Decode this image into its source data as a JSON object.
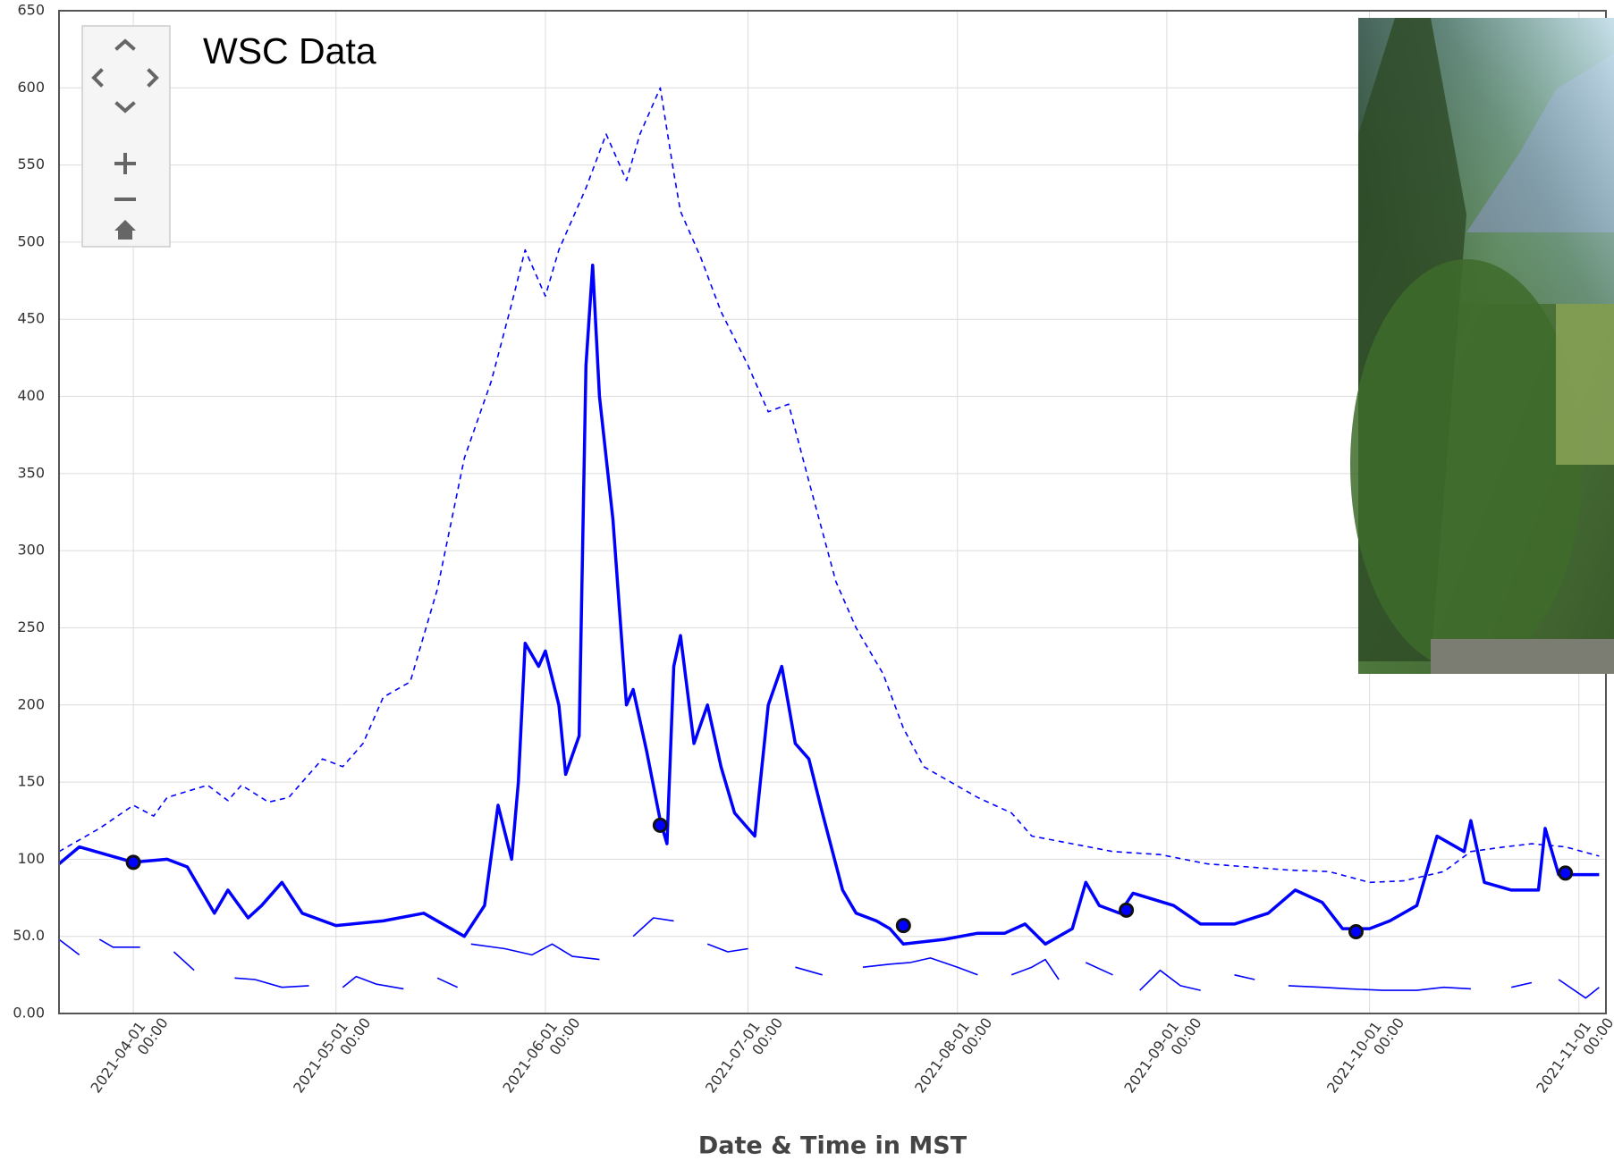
{
  "chart_data": {
    "type": "line",
    "annotation": "WSC Data",
    "x_label": "Date & Time in MST",
    "xlim": [
      "2021-03-21 00:00",
      "2021-11-05 00:00"
    ],
    "xticks": [
      "2021-04-01 00:00",
      "2021-05-01 00:00",
      "2021-06-01 00:00",
      "2021-07-01 00:00",
      "2021-08-01 00:00",
      "2021-09-01 00:00",
      "2021-10-01 00:00",
      "2021-11-01 00:00"
    ],
    "ylim": [
      0,
      650
    ],
    "yticks": [
      {
        "value": 0,
        "label": "0.00"
      },
      {
        "value": 50,
        "label": "50.0"
      },
      100,
      150,
      200,
      250,
      300,
      350,
      400,
      450,
      500,
      550,
      600,
      650
    ],
    "grid": true,
    "series": [
      {
        "color": "#0000ff",
        "style": "dashed",
        "x": [
          "2021-03-21 00:00",
          "2021-03-27 00:00",
          "2021-04-01 00:00",
          "2021-04-04 00:00",
          "2021-04-06 00:00",
          "2021-04-12 00:00",
          "2021-04-15 00:00",
          "2021-04-17 00:00",
          "2021-04-21 00:00",
          "2021-04-24 00:00",
          "2021-04-29 00:00",
          "2021-05-02 00:00",
          "2021-05-05 00:00",
          "2021-05-08 00:00",
          "2021-05-12 00:00",
          "2021-05-16 00:00",
          "2021-05-20 00:00",
          "2021-05-24 00:00",
          "2021-05-27 00:00",
          "2021-05-29 00:00",
          "2021-06-01 00:00",
          "2021-06-03 00:00",
          "2021-06-07 00:00",
          "2021-06-10 00:00",
          "2021-06-13 00:00",
          "2021-06-15 00:00",
          "2021-06-18 00:00",
          "2021-06-20 00:00",
          "2021-06-21 00:00",
          "2021-06-24 00:00",
          "2021-06-27 00:00",
          "2021-07-01 00:00",
          "2021-07-04 00:00",
          "2021-07-07 00:00",
          "2021-07-10 00:00",
          "2021-07-14 00:00",
          "2021-07-17 00:00",
          "2021-07-21 00:00",
          "2021-07-24 00:00",
          "2021-07-27 00:00",
          "2021-07-31 00:00",
          "2021-08-04 00:00",
          "2021-08-09 00:00",
          "2021-08-12 00:00",
          "2021-08-18 00:00",
          "2021-08-24 00:00",
          "2021-08-31 00:00",
          "2021-09-07 00:00",
          "2021-09-13 00:00",
          "2021-09-19 00:00",
          "2021-09-25 00:00",
          "2021-10-01 00:00",
          "2021-10-06 00:00",
          "2021-10-12 00:00",
          "2021-10-16 00:00",
          "2021-10-21 00:00",
          "2021-10-25 00:00",
          "2021-10-30 00:00",
          "2021-11-04 00:00"
        ],
        "values": [
          105,
          120,
          135,
          128,
          140,
          148,
          138,
          148,
          137,
          140,
          165,
          160,
          175,
          205,
          215,
          275,
          360,
          410,
          460,
          495,
          465,
          495,
          535,
          570,
          540,
          570,
          600,
          545,
          520,
          490,
          455,
          420,
          390,
          395,
          345,
          280,
          250,
          220,
          185,
          160,
          150,
          140,
          130,
          115,
          110,
          105,
          103,
          97,
          95,
          93,
          92,
          85,
          86,
          92,
          105,
          108,
          110,
          108,
          102
        ]
      },
      {
        "color": "#0000ff",
        "style": "solid",
        "x": [
          "2021-03-21 00:00",
          "2021-03-24 00:00",
          "2021-03-28 00:00",
          "2021-04-01 00:00",
          "2021-04-06 00:00",
          "2021-04-09 00:00",
          "2021-04-13 00:00",
          "2021-04-15 00:00",
          "2021-04-18 00:00",
          "2021-04-20 00:00",
          "2021-04-23 00:00",
          "2021-04-26 00:00",
          "2021-05-01 00:00",
          "2021-05-08 00:00",
          "2021-05-14 00:00",
          "2021-05-20 00:00",
          "2021-05-23 00:00",
          "2021-05-25 00:00",
          "2021-05-27 00:00",
          "2021-05-28 00:00",
          "2021-05-29 00:00",
          "2021-05-31 00:00",
          "2021-06-01 00:00",
          "2021-06-03 00:00",
          "2021-06-04 00:00",
          "2021-06-06 00:00",
          "2021-06-07 00:00",
          "2021-06-08 00:00",
          "2021-06-09 00:00",
          "2021-06-11 00:00",
          "2021-06-12 00:00",
          "2021-06-13 00:00",
          "2021-06-14 00:00",
          "2021-06-16 00:00",
          "2021-06-18 00:00",
          "2021-06-19 00:00",
          "2021-06-20 00:00",
          "2021-06-21 00:00",
          "2021-06-23 00:00",
          "2021-06-25 00:00",
          "2021-06-27 00:00",
          "2021-06-29 00:00",
          "2021-07-02 00:00",
          "2021-07-04 00:00",
          "2021-07-06 00:00",
          "2021-07-08 00:00",
          "2021-07-10 00:00",
          "2021-07-12 00:00",
          "2021-07-15 00:00",
          "2021-07-17 00:00",
          "2021-07-20 00:00",
          "2021-07-22 00:00",
          "2021-07-24 00:00",
          "2021-07-30 00:00",
          "2021-08-04 00:00",
          "2021-08-08 00:00",
          "2021-08-11 00:00",
          "2021-08-14 00:00",
          "2021-08-18 00:00",
          "2021-08-20 00:00",
          "2021-08-22 00:00",
          "2021-08-25 00:00",
          "2021-08-27 00:00",
          "2021-09-02 00:00",
          "2021-09-06 00:00",
          "2021-09-11 00:00",
          "2021-09-16 00:00",
          "2021-09-20 00:00",
          "2021-09-24 00:00",
          "2021-09-27 00:00",
          "2021-10-01 00:00",
          "2021-10-04 00:00",
          "2021-10-08 00:00",
          "2021-10-11 00:00",
          "2021-10-15 00:00",
          "2021-10-16 00:00",
          "2021-10-18 00:00",
          "2021-10-22 00:00",
          "2021-10-26 00:00",
          "2021-10-27 00:00",
          "2021-10-29 00:00",
          "2021-11-04 00:00"
        ],
        "values": [
          97,
          108,
          103,
          98,
          100,
          95,
          65,
          80,
          62,
          70,
          85,
          65,
          57,
          60,
          65,
          50,
          70,
          135,
          100,
          150,
          240,
          225,
          235,
          200,
          155,
          180,
          420,
          485,
          400,
          320,
          260,
          200,
          210,
          170,
          125,
          110,
          225,
          245,
          175,
          200,
          160,
          130,
          115,
          200,
          225,
          175,
          165,
          130,
          80,
          65,
          60,
          55,
          45,
          48,
          52,
          52,
          58,
          45,
          55,
          85,
          70,
          65,
          78,
          70,
          58,
          58,
          65,
          80,
          72,
          55,
          55,
          60,
          70,
          115,
          105,
          125,
          85,
          80,
          80,
          120,
          90,
          90
        ]
      },
      {
        "color": "#0000ff",
        "style": "long-dash",
        "x": [
          "2021-03-21 00:00",
          "2021-03-24 00:00",
          "2021-03-26 00:00",
          "2021-03-27 00:00",
          "2021-03-29 00:00",
          "2021-04-02 00:00",
          "2021-04-05 00:00",
          "2021-04-07 00:00",
          "2021-04-10 00:00",
          "2021-04-13 00:00",
          "2021-04-16 00:00",
          "2021-04-19 00:00",
          "2021-04-23 00:00",
          "2021-04-27 00:00",
          "2021-04-30 00:00",
          "2021-05-02 00:00",
          "2021-05-04 00:00",
          "2021-05-07 00:00",
          "2021-05-11 00:00",
          "2021-05-13 00:00",
          "2021-05-16 00:00",
          "2021-05-19 00:00",
          "2021-05-20 00:00",
          "2021-05-21 00:00",
          "2021-05-26 00:00",
          "2021-05-30 00:00",
          "2021-06-02 00:00",
          "2021-06-05 00:00",
          "2021-06-09 00:00",
          "2021-06-11 00:00",
          "2021-06-14 00:00",
          "2021-06-17 00:00",
          "2021-06-20 00:00",
          "2021-06-22 00:00",
          "2021-06-25 00:00",
          "2021-06-28 00:00",
          "2021-07-01 00:00",
          "2021-07-03 00:00",
          "2021-07-08 00:00",
          "2021-07-12 00:00",
          "2021-07-15 00:00",
          "2021-07-18 00:00",
          "2021-07-22 00:00",
          "2021-07-25 00:00",
          "2021-07-28 00:00",
          "2021-08-01 00:00",
          "2021-08-04 00:00",
          "2021-08-06 00:00",
          "2021-08-09 00:00",
          "2021-08-12 00:00",
          "2021-08-14 00:00",
          "2021-08-16 00:00",
          "2021-08-18 00:00",
          "2021-08-20 00:00",
          "2021-08-24 00:00",
          "2021-08-26 00:00",
          "2021-08-28 00:00",
          "2021-08-31 00:00",
          "2021-09-03 00:00",
          "2021-09-06 00:00",
          "2021-09-08 00:00",
          "2021-09-11 00:00",
          "2021-09-14 00:00",
          "2021-09-16 00:00",
          "2021-09-19 00:00",
          "2021-09-24 00:00",
          "2021-09-28 00:00",
          "2021-10-03 00:00",
          "2021-10-08 00:00",
          "2021-10-12 00:00",
          "2021-10-16 00:00",
          "2021-10-20 00:00",
          "2021-10-22 00:00",
          "2021-10-25 00:00",
          "2021-10-27 00:00",
          "2021-10-29 00:00",
          "2021-11-02 00:00",
          "2021-11-04 00:00"
        ],
        "values": [
          48,
          38,
          null,
          48,
          43,
          43,
          null,
          40,
          28,
          null,
          23,
          22,
          17,
          18,
          null,
          17,
          24,
          19,
          16,
          null,
          23,
          17,
          null,
          45,
          42,
          38,
          45,
          37,
          35,
          null,
          50,
          62,
          60,
          null,
          45,
          40,
          42,
          null,
          30,
          25,
          null,
          30,
          32,
          33,
          36,
          30,
          25,
          null,
          25,
          30,
          35,
          22,
          null,
          33,
          25,
          null,
          15,
          28,
          18,
          15,
          null,
          25,
          22,
          null,
          18,
          17,
          16,
          15,
          15,
          17,
          16,
          null,
          17,
          20,
          null,
          22,
          10,
          17
        ]
      },
      {
        "color": "#0000ff",
        "style": "points",
        "x": [
          "2021-04-01 00:00",
          "2021-06-18 00:00",
          "2021-07-24 00:00",
          "2021-08-26 00:00",
          "2021-09-29 00:00",
          "2021-10-30 00:00"
        ],
        "values": [
          98,
          122,
          57,
          67,
          53,
          91
        ]
      }
    ]
  }
}
